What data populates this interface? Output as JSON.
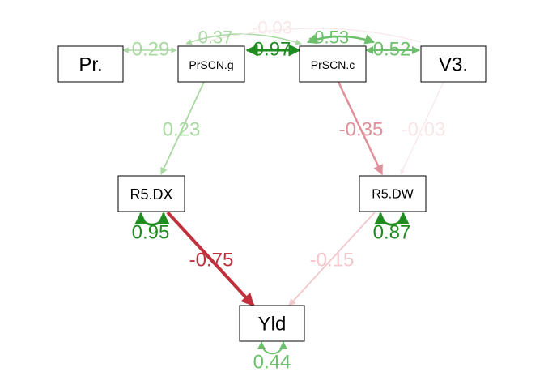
{
  "nodes": {
    "pr": "Pr.",
    "prscn_g": "PrSCN.g",
    "prscn_c": "PrSCN.c",
    "v3": "V3.",
    "r5dx": "R5.DX",
    "r5dw": "R5.DW",
    "yld": "Yld"
  },
  "edges": {
    "pr_prscn_g": "0.29",
    "prscn_g_prscn_c_cov": "0.37",
    "prscn_g_v3_cov": "-0.03",
    "prscn_g_prscn_c_strong": "0.97",
    "prscn_c_prscn_g_cov": "-0.53",
    "prscn_c_v3": "0.52",
    "prscn_g_r5dx": "0.23",
    "prscn_c_r5dw": "-0.35",
    "v3_r5dw": "-0.03",
    "r5dx_resid": "0.95",
    "r5dw_resid": "0.87",
    "r5dx_yld": "-0.75",
    "r5dw_yld": "-0.15",
    "yld_resid": "0.44"
  },
  "colors": {
    "positive_strong": "#1f8c1f",
    "positive_medium": "#6cc06c",
    "positive_light": "#a8d9a0",
    "negative_strong": "#c0303c",
    "negative_medium": "#e0909a",
    "negative_light": "#f2c8cc",
    "negative_faint": "#f8e6e8"
  }
}
